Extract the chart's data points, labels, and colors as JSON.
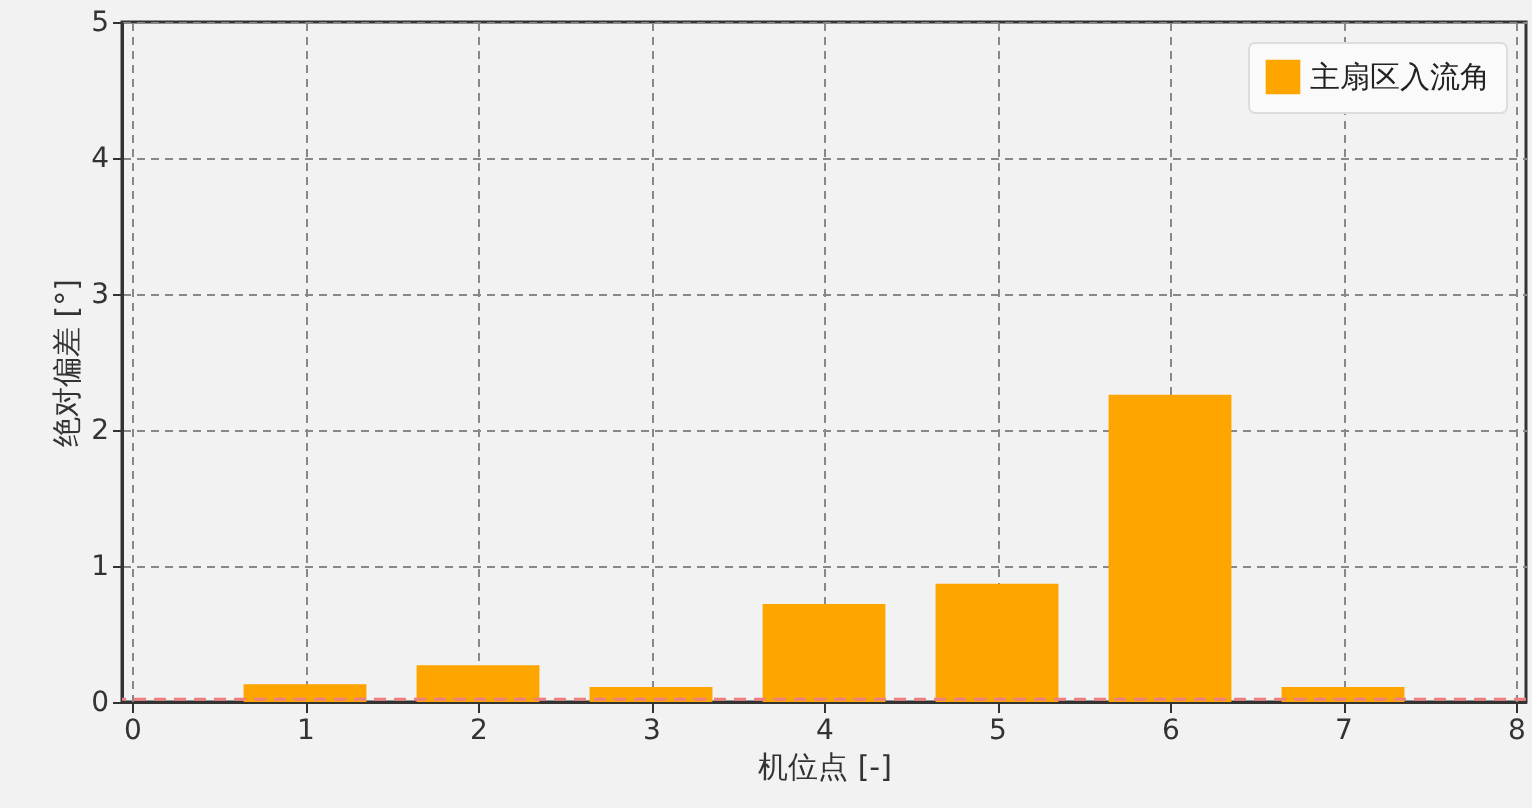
{
  "chart_data": {
    "type": "bar",
    "xlabel": "机位点 [-]",
    "ylabel": "绝对偏差 [°]",
    "x": [
      1,
      2,
      3,
      4,
      5,
      6,
      7
    ],
    "series": [
      {
        "name": "主扇区入流角",
        "color": "#ffa500",
        "values": [
          0.13,
          0.27,
          0.11,
          0.72,
          0.87,
          2.26,
          0.11
        ]
      }
    ],
    "xlim": [
      0,
      8
    ],
    "xticks": [
      0,
      1,
      2,
      3,
      4,
      5,
      6,
      7,
      8
    ],
    "ylim": [
      0,
      5
    ],
    "yticks": [
      0,
      1,
      2,
      3,
      4,
      5
    ],
    "ref_lines": [
      {
        "axis": "y",
        "value": 0.02,
        "color": "#f08080",
        "line_style": "dashed"
      }
    ],
    "grid": true,
    "legend": "top right"
  }
}
